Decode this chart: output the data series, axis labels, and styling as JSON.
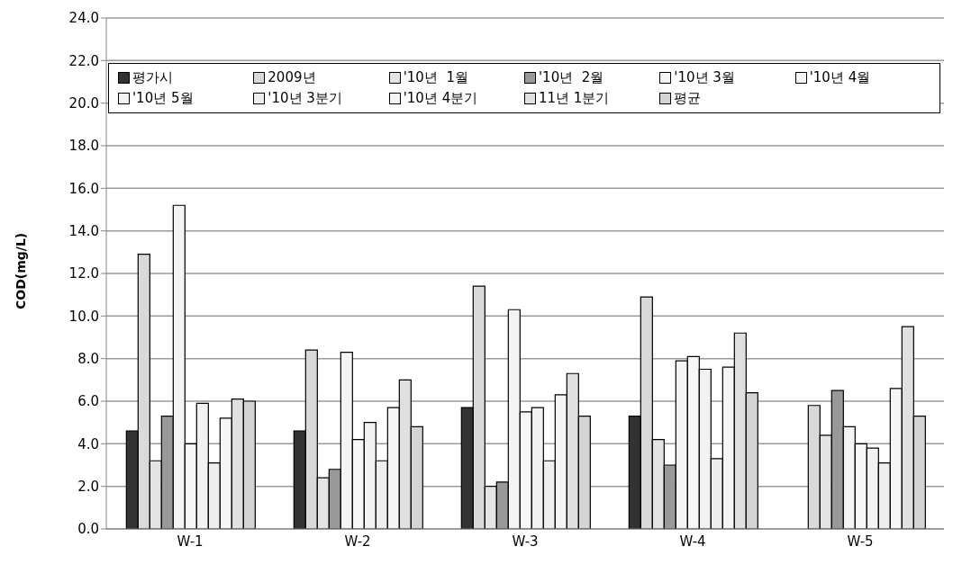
{
  "chart_data": {
    "type": "bar",
    "ylabel": "COD(mg/L)",
    "categories": [
      "W-1",
      "W-2",
      "W-3",
      "W-4",
      "W-5"
    ],
    "series": [
      {
        "name": "평가시",
        "color": "#333333",
        "values": [
          4.6,
          4.6,
          5.7,
          5.3,
          null
        ]
      },
      {
        "name": "2009년",
        "color": "#d9d9d9",
        "values": [
          12.9,
          8.4,
          11.4,
          10.9,
          5.8
        ]
      },
      {
        "name": "'10년  1월",
        "color": "#e4e4e4",
        "values": [
          3.2,
          2.4,
          2.0,
          4.2,
          4.4
        ]
      },
      {
        "name": "'10년  2월",
        "color": "#999999",
        "values": [
          5.3,
          2.8,
          2.2,
          3.0,
          6.5
        ]
      },
      {
        "name": "'10년 3월",
        "color": "#f4f4f4",
        "values": [
          15.2,
          8.3,
          10.3,
          7.9,
          4.8
        ]
      },
      {
        "name": "'10년 4월",
        "color": "#f7f7f7",
        "values": [
          4.0,
          4.2,
          5.5,
          8.1,
          4.0
        ]
      },
      {
        "name": "'10년 5월",
        "color": "#f2f2f2",
        "values": [
          5.9,
          5.0,
          5.7,
          7.5,
          3.8
        ]
      },
      {
        "name": "'10년 3분기",
        "color": "#eeeeee",
        "values": [
          3.1,
          3.2,
          3.2,
          3.3,
          3.1
        ]
      },
      {
        "name": "'10년 4분기",
        "color": "#f5f5f5",
        "values": [
          5.2,
          5.7,
          6.3,
          7.6,
          6.6
        ]
      },
      {
        "name": "11년 1분기",
        "color": "#e0e0e0",
        "values": [
          6.1,
          7.0,
          7.3,
          9.2,
          9.5
        ]
      },
      {
        "name": "평균",
        "color": "#d4d4d4",
        "values": [
          6.0,
          4.8,
          5.3,
          6.4,
          5.3
        ]
      }
    ],
    "ylim": [
      0,
      24
    ],
    "yticks": [
      {
        "value": 0,
        "label": "0.0"
      },
      {
        "value": 2,
        "label": "2.0"
      },
      {
        "value": 4,
        "label": "4.0"
      },
      {
        "value": 6,
        "label": "6.0"
      },
      {
        "value": 8,
        "label": "8.0"
      },
      {
        "value": 10,
        "label": "10.0"
      },
      {
        "value": 12,
        "label": "12.0"
      },
      {
        "value": 14,
        "label": "14.0"
      },
      {
        "value": 16,
        "label": "16.0"
      },
      {
        "value": 18,
        "label": "18.0"
      },
      {
        "value": 20,
        "label": "20.0"
      },
      {
        "value": 22,
        "label": "22.0"
      },
      {
        "value": 24,
        "label": "24.0"
      }
    ],
    "grid": "y",
    "legend": "top"
  }
}
